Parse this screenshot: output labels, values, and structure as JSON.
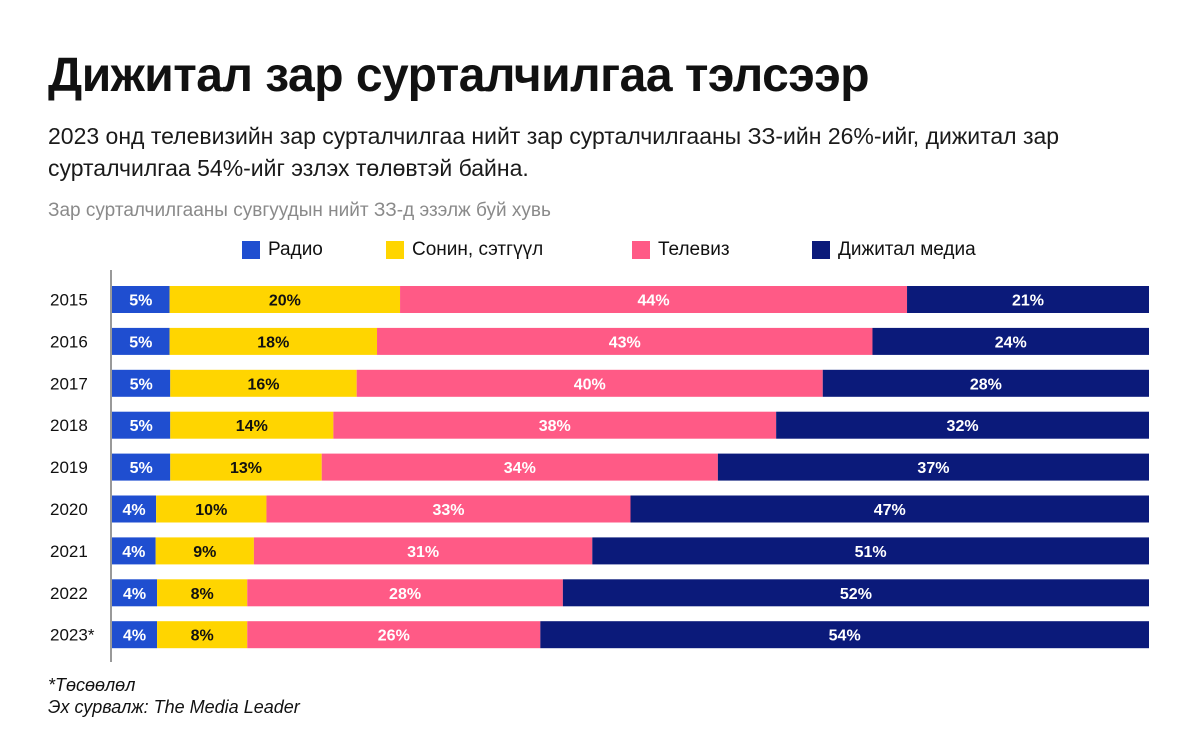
{
  "title": "Дижитал зар сурталчилгаа тэлсээр",
  "subtitle": "2023 онд телевизийн зар сурталчилгаа нийт зар сурталчилгааны ЗЗ-ийн 26%-ийг, дижитал зар сурталчилгаа 54%-ийг эзлэх төлөвтэй байна.",
  "note": "Зар сурталчилгааны сувгуудын нийт ЗЗ-д эзэлж буй хувь",
  "footnotes": {
    "estimate": "*Төсөөлөл",
    "source": "Эх сурвалж: The Media Leader"
  },
  "chart_data": {
    "type": "bar",
    "orientation": "horizontal",
    "stacked": true,
    "categories": [
      "2015",
      "2016",
      "2017",
      "2018",
      "2019",
      "2020",
      "2021",
      "2022",
      "2023*"
    ],
    "series": [
      {
        "name": "Радио",
        "color": "#1f4ed0",
        "label_color": "#ffffff",
        "values": [
          5,
          5,
          5,
          5,
          5,
          4,
          4,
          4,
          4
        ]
      },
      {
        "name": "Сонин, сэтгүүл",
        "color": "#ffd500",
        "label_color": "#111111",
        "values": [
          20,
          18,
          16,
          14,
          13,
          10,
          9,
          8,
          8
        ]
      },
      {
        "name": "Телевиз",
        "color": "#ff5a86",
        "label_color": "#ffffff",
        "values": [
          44,
          43,
          40,
          38,
          34,
          33,
          31,
          28,
          26
        ]
      },
      {
        "name": "Дижитал медиа",
        "color": "#0b1a7a",
        "label_color": "#ffffff",
        "values": [
          21,
          24,
          28,
          32,
          37,
          47,
          51,
          52,
          54
        ]
      }
    ],
    "value_suffix": "%",
    "legend": "top",
    "grid": false
  }
}
